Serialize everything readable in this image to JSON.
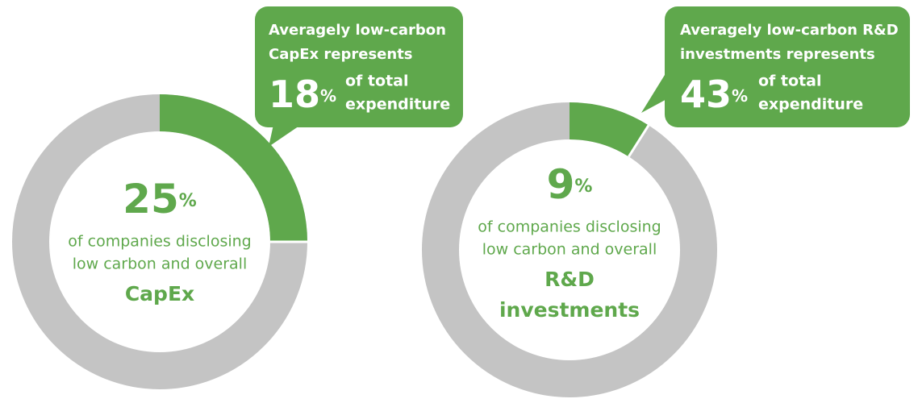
{
  "chart_data": [
    {
      "type": "donut",
      "values": [
        25
      ],
      "value_labels": [
        "25%"
      ],
      "color": "#5fa84c",
      "track_color": "#c4c4c4",
      "description_lines": [
        "of companies disclosing",
        "low carbon and overall"
      ],
      "subject_lines": [
        "CapEx"
      ],
      "callout": {
        "title_lines": [
          "Averagely low-carbon",
          "CapEx represents"
        ],
        "value_label": "18%",
        "note_lines": [
          "of total",
          "expenditure"
        ]
      }
    },
    {
      "type": "donut",
      "values": [
        9
      ],
      "value_labels": [
        "9%"
      ],
      "color": "#5fa84c",
      "track_color": "#c4c4c4",
      "description_lines": [
        "of companies disclosing",
        "low carbon and overall"
      ],
      "subject_lines": [
        "R&D",
        "investments"
      ],
      "callout": {
        "title_lines": [
          "Averagely low-carbon R&D",
          "investments represents"
        ],
        "value_label": "43%",
        "note_lines": [
          "of total",
          "expenditure"
        ]
      }
    }
  ]
}
